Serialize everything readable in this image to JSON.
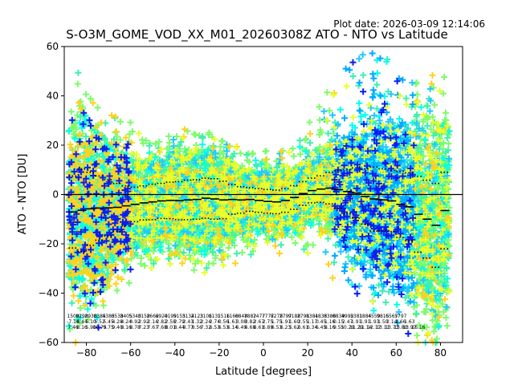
{
  "plot_date": "Plot date: 2026-03-09 12:14:06",
  "chart_data": {
    "type": "scatter",
    "title": "S-O3M_GOME_VOD_XX_M01_20260308Z ATO - NTO vs Latitude",
    "xlabel": "Latitude [degrees]",
    "ylabel": "ATO - NTO [DU]",
    "xlim": [
      -90,
      90
    ],
    "ylim": [
      -60,
      60
    ],
    "x_ticks": [
      -80,
      -60,
      -40,
      -20,
      0,
      20,
      40,
      60,
      80
    ],
    "x_tick_labels": [
      "−80",
      "−60",
      "−40",
      "−20",
      "0",
      "20",
      "40",
      "60",
      "80"
    ],
    "y_ticks": [
      -60,
      -40,
      -20,
      0,
      20,
      40,
      60
    ],
    "y_tick_labels": [
      "−60",
      "−40",
      "−20",
      "0",
      "20",
      "40",
      "60"
    ],
    "grid": false,
    "point_colors": [
      "#7cfc6a",
      "#3cf0b0",
      "#00ffee",
      "#22c8ff",
      "#00aaff",
      "#ffd21e",
      "#e8ff2a",
      "#0a1ef0"
    ],
    "marker": "+",
    "zero_line": 0,
    "bins": [
      {
        "lat": -86,
        "mean": -7.1,
        "upper": 7.5,
        "lower": -21.7,
        "spread_lo": -33,
        "spread_hi": 20,
        "count": "1509",
        "mean_label": "-7.16",
        "std_label": "7.46"
      },
      {
        "lat": -82,
        "mean": -6.4,
        "upper": 10.4,
        "lower": -23.2,
        "spread_lo": -36,
        "spread_hi": 22,
        "count": "8298",
        "mean_label": "4.44",
        "std_label": "8.16"
      },
      {
        "lat": -78,
        "mean": -5.8,
        "upper": 9.0,
        "lower": -20.6,
        "spread_lo": -40,
        "spread_hi": 24,
        "count": "2938",
        "mean_label": "5.10",
        "std_label": "5.90"
      },
      {
        "lat": -74,
        "mean": -5.5,
        "upper": 7.5,
        "lower": -18.5,
        "spread_lo": -42,
        "spread_hi": 26,
        "count": "0385",
        "mean_label": "5.52",
        "std_label": "10.75"
      },
      {
        "lat": -70,
        "mean": -5.4,
        "upper": 6.0,
        "lower": -16.8,
        "spread_lo": -44,
        "spread_hi": 30,
        "count": "4383",
        "mean_label": "5.45",
        "std_label": "9.75"
      },
      {
        "lat": -66,
        "mean": -5.2,
        "upper": 4.5,
        "lower": -14.9,
        "spread_lo": -42,
        "spread_hi": 32,
        "count": "6538",
        "mean_label": "4.28",
        "std_label": "9.40"
      },
      {
        "lat": -62,
        "mean": -4.6,
        "upper": 3.5,
        "lower": -12.7,
        "spread_lo": -36,
        "spread_hi": 30,
        "count": "3405",
        "mean_label": "4.24",
        "std_label": "8.16"
      },
      {
        "lat": -58,
        "mean": -4.0,
        "upper": 3.0,
        "lower": -11.0,
        "spread_lo": -34,
        "spread_hi": 26,
        "count": "5340",
        "mean_label": "4.92",
        "std_label": "8.78"
      },
      {
        "lat": -54,
        "mean": -3.4,
        "upper": 3.5,
        "lower": -10.3,
        "spread_lo": -32,
        "spread_hi": 24,
        "count": "3158",
        "mean_label": "2.92",
        "std_label": "7.23"
      },
      {
        "lat": -50,
        "mean": -3.0,
        "upper": 4.2,
        "lower": -10.2,
        "spread_lo": -30,
        "spread_hi": 22,
        "count": "2662",
        "mean_label": "2.14",
        "std_label": "7.67"
      },
      {
        "lat": -46,
        "mean": -2.6,
        "upper": 4.5,
        "lower": -9.7,
        "spread_lo": -30,
        "spread_hi": 22,
        "count": "6920",
        "mean_label": "2.82",
        "std_label": "7.68"
      },
      {
        "lat": -42,
        "mean": -2.4,
        "upper": 5.0,
        "lower": -9.8,
        "spread_lo": -28,
        "spread_hi": 24,
        "count": "4199",
        "mean_label": "2.58",
        "std_label": "8.01"
      },
      {
        "lat": -38,
        "mean": -2.5,
        "upper": 5.2,
        "lower": -10.2,
        "spread_lo": -28,
        "spread_hi": 24,
        "count": "5155",
        "mean_label": "2.79",
        "std_label": "8.44"
      },
      {
        "lat": -34,
        "mean": -2.2,
        "upper": 5.8,
        "lower": -10.2,
        "spread_lo": -28,
        "spread_hi": 26,
        "count": "3134",
        "mean_label": "2.43",
        "std_label": "8.77"
      },
      {
        "lat": -30,
        "mean": -2.0,
        "upper": 6.0,
        "lower": -10.0,
        "spread_lo": -30,
        "spread_hi": 26,
        "count": "2123",
        "mean_label": "1.32",
        "std_label": "8.56"
      },
      {
        "lat": -26,
        "mean": -1.5,
        "upper": 6.6,
        "lower": -9.6,
        "spread_lo": -32,
        "spread_hi": 26,
        "count": "3106",
        "mean_label": "2.24",
        "std_label": "7.32"
      },
      {
        "lat": -22,
        "mean": -1.8,
        "upper": 6.4,
        "lower": -10.0,
        "spread_lo": -32,
        "spread_hi": 24,
        "count": "1131",
        "mean_label": "2.74",
        "std_label": "6.53"
      },
      {
        "lat": -18,
        "mean": -2.2,
        "upper": 5.4,
        "lower": -9.8,
        "spread_lo": -30,
        "spread_hi": 22,
        "count": "1516",
        "mean_label": "0.56",
        "std_label": "6.53"
      },
      {
        "lat": -14,
        "mean": -2.0,
        "upper": 4.0,
        "lower": -8.0,
        "spread_lo": -28,
        "spread_hi": 20,
        "count": "1160",
        "mean_label": "1.61",
        "std_label": "6.14"
      },
      {
        "lat": -10,
        "mean": -2.2,
        "upper": 3.2,
        "lower": -7.6,
        "spread_lo": -26,
        "spread_hi": 18,
        "count": "6848",
        "mean_label": "3.08",
        "std_label": "6.49"
      },
      {
        "lat": -6,
        "mean": -2.0,
        "upper": 2.8,
        "lower": -6.8,
        "spread_lo": -26,
        "spread_hi": 18,
        "count": "7882",
        "mean_label": "3.82",
        "std_label": "6.68"
      },
      {
        "lat": -2,
        "mean": -2.4,
        "upper": 2.4,
        "lower": -7.2,
        "spread_lo": -24,
        "spread_hi": 18,
        "count": "7477",
        "mean_label": "2.67",
        "std_label": "6.61"
      },
      {
        "lat": 2,
        "mean": -2.8,
        "upper": 2.0,
        "lower": -7.6,
        "spread_lo": -24,
        "spread_hi": 18,
        "count": "7777",
        "mean_label": "2.75",
        "std_label": "6.89"
      },
      {
        "lat": 6,
        "mean": -3.0,
        "upper": 1.8,
        "lower": -7.8,
        "spread_lo": -24,
        "spread_hi": 18,
        "count": "8278",
        "mean_label": "1.75",
        "std_label": "6.53"
      },
      {
        "lat": 10,
        "mean": -2.4,
        "upper": 2.4,
        "lower": -7.2,
        "spread_lo": -22,
        "spread_hi": 18,
        "count": "2797",
        "mean_label": "1.91",
        "std_label": "6.23"
      },
      {
        "lat": 14,
        "mean": -1.2,
        "upper": 3.6,
        "lower": -6.0,
        "spread_lo": -22,
        "spread_hi": 20,
        "count": "9188",
        "mean_label": "1.60",
        "std_label": "5.62"
      },
      {
        "lat": 18,
        "mean": 0.4,
        "upper": 5.2,
        "lower": -4.4,
        "spread_lo": -24,
        "spread_hi": 24,
        "count": "2791",
        "mean_label": "2.55",
        "std_label": "6.61"
      },
      {
        "lat": 22,
        "mean": 1.6,
        "upper": 6.6,
        "lower": -3.4,
        "spread_lo": -28,
        "spread_hi": 30,
        "count": "8381",
        "mean_label": "1.17",
        "std_label": "6.34"
      },
      {
        "lat": 26,
        "mean": 2.2,
        "upper": 7.6,
        "lower": -3.2,
        "spread_lo": -30,
        "spread_hi": 36,
        "count": "4833",
        "mean_label": "0.45",
        "std_label": "6.45"
      },
      {
        "lat": 30,
        "mean": 2.6,
        "upper": 9.0,
        "lower": -3.8,
        "spread_lo": -34,
        "spread_hi": 42,
        "count": "8386",
        "mean_label": "1.16",
        "std_label": "8.16"
      },
      {
        "lat": 34,
        "mean": 2.0,
        "upper": 9.6,
        "lower": -5.6,
        "spread_lo": -36,
        "spread_hi": 48,
        "count": "0839",
        "mean_label": "0.15",
        "std_label": "9.55"
      },
      {
        "lat": 38,
        "mean": 1.2,
        "upper": 10.2,
        "lower": -7.8,
        "spread_lo": -40,
        "spread_hi": 54,
        "count": "4992",
        "mean_label": "2.47",
        "std_label": "10.29"
      },
      {
        "lat": 42,
        "mean": 0.6,
        "upper": 10.8,
        "lower": -9.6,
        "spread_lo": -44,
        "spread_hi": 58,
        "count": "5381",
        "mean_label": "1.91",
        "std_label": "11.29"
      },
      {
        "lat": 46,
        "mean": -0.8,
        "upper": 10.4,
        "lower": -12.0,
        "spread_lo": -46,
        "spread_hi": 58,
        "count": "1884",
        "mean_label": "1.91",
        "std_label": "11.14"
      },
      {
        "lat": 50,
        "mean": -1.8,
        "upper": 11.2,
        "lower": -14.8,
        "spread_lo": -46,
        "spread_hi": 58,
        "count": "4559",
        "mean_label": "1.93",
        "std_label": "12.17"
      },
      {
        "lat": 54,
        "mean": -2.2,
        "upper": 10.4,
        "lower": -14.8,
        "spread_lo": -44,
        "spread_hi": 56,
        "count": "9815",
        "mean_label": "1.50",
        "std_label": "13.11"
      },
      {
        "lat": 58,
        "mean": -2.6,
        "upper": 9.8,
        "lower": -15.0,
        "spread_lo": -44,
        "spread_hi": 54,
        "count": "6567",
        "mean_label": "2.14",
        "std_label": "13.73"
      },
      {
        "lat": 62,
        "mean": -4.0,
        "upper": 9.4,
        "lower": -17.4,
        "spread_lo": -44,
        "spread_hi": 50,
        "count": "5797",
        "mean_label": "1.66",
        "std_label": "13.80"
      },
      {
        "lat": 66,
        "mean": -5.0,
        "upper": 8.8,
        "lower": -18.8,
        "spread_lo": -44,
        "spread_hi": 48,
        "count": "",
        "mean_label": "1.63",
        "std_label": "13.97"
      },
      {
        "lat": 70,
        "mean": -8.0,
        "upper": 7.4,
        "lower": -23.4,
        "spread_lo": -46,
        "spread_hi": 46,
        "count": "",
        "mean_label": "",
        "std_label": "16.16"
      },
      {
        "lat": 74,
        "mean": -10.0,
        "upper": 5.8,
        "lower": -25.8,
        "spread_lo": -48,
        "spread_hi": 46,
        "count": "",
        "mean_label": "",
        "std_label": ""
      },
      {
        "lat": 78,
        "mean": -12.5,
        "upper": 4.5,
        "lower": -29.5,
        "spread_lo": -50,
        "spread_hi": 44,
        "count": "",
        "mean_label": "",
        "std_label": ""
      },
      {
        "lat": 82,
        "mean": -6.5,
        "upper": 9.0,
        "lower": -22.0,
        "spread_lo": -52,
        "spread_hi": 44,
        "count": "",
        "mean_label": "",
        "std_label": ""
      }
    ]
  }
}
